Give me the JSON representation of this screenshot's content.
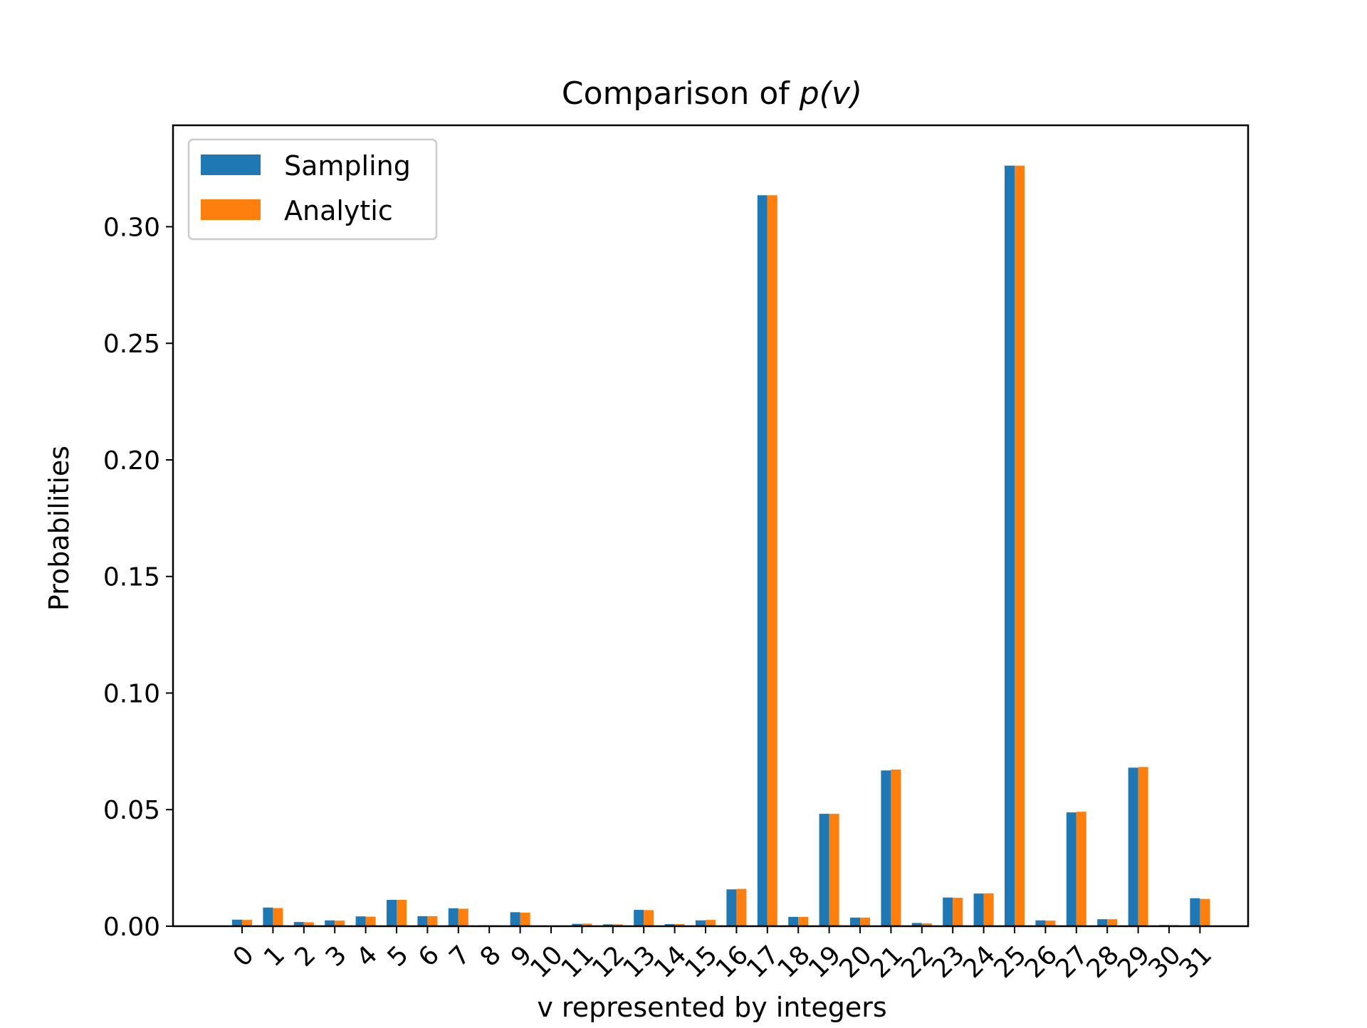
{
  "chart_data": {
    "type": "bar",
    "title": "Comparison of ",
    "title_math": "p(v)",
    "xlabel": "v represented by integers",
    "ylabel": "Probabilities",
    "ylim": [
      0,
      0.3435
    ],
    "yticks": [
      "0.00",
      "0.05",
      "0.10",
      "0.15",
      "0.20",
      "0.25",
      "0.30"
    ],
    "ytick_values": [
      0,
      0.05,
      0.1,
      0.15,
      0.2,
      0.25,
      0.3
    ],
    "categories": [
      "0",
      "1",
      "2",
      "3",
      "4",
      "5",
      "6",
      "7",
      "8",
      "9",
      "10",
      "11",
      "12",
      "13",
      "14",
      "15",
      "16",
      "17",
      "18",
      "19",
      "20",
      "21",
      "22",
      "23",
      "24",
      "25",
      "26",
      "27",
      "28",
      "29",
      "30",
      "31"
    ],
    "legend_position": "top-left",
    "grid": false,
    "series": [
      {
        "name": "Sampling",
        "color": "#1f77b4",
        "values": [
          0.0028,
          0.008,
          0.0018,
          0.0025,
          0.0042,
          0.0113,
          0.0043,
          0.0077,
          0.0004,
          0.006,
          0.0001,
          0.001,
          0.0008,
          0.007,
          0.0009,
          0.0025,
          0.0158,
          0.3135,
          0.004,
          0.0482,
          0.0037,
          0.0668,
          0.0014,
          0.0123,
          0.014,
          0.3262,
          0.0025,
          0.0488,
          0.003,
          0.068,
          0.0005,
          0.012
        ]
      },
      {
        "name": "Analytic",
        "color": "#ff7f0e",
        "values": [
          0.0027,
          0.0078,
          0.0017,
          0.0024,
          0.0041,
          0.0113,
          0.0043,
          0.0075,
          0.0004,
          0.0058,
          0.0001,
          0.0011,
          0.0008,
          0.0069,
          0.0009,
          0.0027,
          0.016,
          0.3135,
          0.004,
          0.0482,
          0.0037,
          0.0672,
          0.0012,
          0.0122,
          0.0141,
          0.3262,
          0.0024,
          0.0491,
          0.003,
          0.0683,
          0.0005,
          0.0117
        ]
      }
    ]
  }
}
